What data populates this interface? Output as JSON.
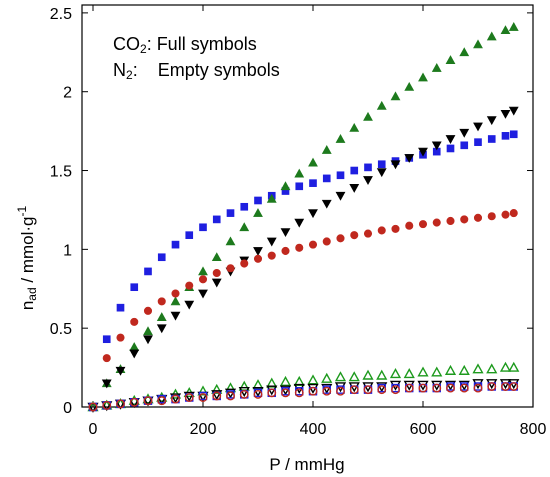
{
  "chart_data": {
    "type": "scatter",
    "xlabel": "P / mmHg",
    "ylabel": {
      "main": "n",
      "sub": "ad",
      "rest": " / mmol·g",
      "sup": "-1"
    },
    "xlim": [
      -20,
      800
    ],
    "ylim": [
      0,
      2.55
    ],
    "x_ticks": [
      0,
      200,
      400,
      600,
      800
    ],
    "y_ticks": [
      0,
      0.5,
      1,
      1.5,
      2,
      2.5
    ],
    "x_tick_labels": [
      "0",
      "200",
      "400",
      "600",
      "800"
    ],
    "y_tick_labels": [
      "0",
      "0.5",
      "1",
      "1.5",
      "2",
      "2.5"
    ],
    "grid": false,
    "annotations": [
      {
        "main": "CO",
        "sub": "2",
        "text": ": Full symbols"
      },
      {
        "main": "N",
        "sub": "2",
        "text": ":    Empty symbols"
      }
    ],
    "series": [
      {
        "gas": "CO2",
        "filled": true,
        "marker": "square",
        "color": "#1f1fe0",
        "x": [
          25,
          50,
          75,
          100,
          125,
          150,
          175,
          200,
          225,
          250,
          275,
          300,
          325,
          350,
          375,
          400,
          425,
          450,
          475,
          500,
          525,
          550,
          575,
          600,
          625,
          650,
          675,
          700,
          725,
          750,
          765
        ],
        "y": [
          0.43,
          0.63,
          0.76,
          0.86,
          0.95,
          1.03,
          1.09,
          1.14,
          1.19,
          1.23,
          1.27,
          1.31,
          1.34,
          1.37,
          1.4,
          1.42,
          1.45,
          1.47,
          1.5,
          1.52,
          1.54,
          1.56,
          1.58,
          1.6,
          1.62,
          1.64,
          1.66,
          1.68,
          1.7,
          1.72,
          1.73
        ]
      },
      {
        "gas": "CO2",
        "filled": true,
        "marker": "triangle-up",
        "color": "#1d7a1d",
        "x": [
          25,
          50,
          75,
          100,
          125,
          150,
          175,
          200,
          225,
          250,
          275,
          300,
          325,
          350,
          375,
          400,
          425,
          450,
          475,
          500,
          525,
          550,
          575,
          600,
          625,
          650,
          675,
          700,
          725,
          750,
          765
        ],
        "y": [
          0.15,
          0.24,
          0.38,
          0.48,
          0.57,
          0.67,
          0.76,
          0.86,
          0.95,
          1.05,
          1.14,
          1.23,
          1.32,
          1.4,
          1.48,
          1.55,
          1.63,
          1.7,
          1.77,
          1.84,
          1.91,
          1.97,
          2.03,
          2.09,
          2.15,
          2.2,
          2.25,
          2.3,
          2.35,
          2.39,
          2.41
        ]
      },
      {
        "gas": "CO2",
        "filled": true,
        "marker": "triangle-down",
        "color": "#000000",
        "x": [
          25,
          50,
          75,
          100,
          125,
          150,
          175,
          200,
          225,
          250,
          275,
          300,
          325,
          350,
          375,
          400,
          425,
          450,
          475,
          500,
          525,
          550,
          575,
          600,
          625,
          650,
          675,
          700,
          725,
          750,
          765
        ],
        "y": [
          0.15,
          0.23,
          0.34,
          0.43,
          0.5,
          0.58,
          0.65,
          0.72,
          0.79,
          0.86,
          0.93,
          0.99,
          1.05,
          1.11,
          1.17,
          1.23,
          1.29,
          1.34,
          1.39,
          1.44,
          1.49,
          1.54,
          1.58,
          1.62,
          1.66,
          1.7,
          1.74,
          1.78,
          1.82,
          1.86,
          1.88
        ]
      },
      {
        "gas": "CO2",
        "filled": true,
        "marker": "circle",
        "color": "#c0281e",
        "x": [
          25,
          50,
          75,
          100,
          125,
          150,
          175,
          200,
          225,
          250,
          275,
          300,
          325,
          350,
          375,
          400,
          425,
          450,
          475,
          500,
          525,
          550,
          575,
          600,
          625,
          650,
          675,
          700,
          725,
          750,
          765
        ],
        "y": [
          0.31,
          0.44,
          0.54,
          0.61,
          0.67,
          0.72,
          0.77,
          0.81,
          0.85,
          0.88,
          0.91,
          0.94,
          0.96,
          0.99,
          1.01,
          1.03,
          1.05,
          1.07,
          1.09,
          1.1,
          1.12,
          1.13,
          1.15,
          1.16,
          1.17,
          1.18,
          1.19,
          1.2,
          1.21,
          1.22,
          1.23
        ]
      },
      {
        "gas": "N2",
        "filled": false,
        "marker": "triangle-up",
        "color": "#1d9a1d",
        "x": [
          0,
          25,
          50,
          75,
          100,
          125,
          150,
          175,
          200,
          225,
          250,
          275,
          300,
          325,
          350,
          375,
          400,
          425,
          450,
          475,
          500,
          525,
          550,
          575,
          600,
          625,
          650,
          675,
          700,
          725,
          750,
          765
        ],
        "y": [
          0.0,
          0.01,
          0.02,
          0.04,
          0.05,
          0.06,
          0.08,
          0.09,
          0.1,
          0.11,
          0.12,
          0.13,
          0.14,
          0.15,
          0.16,
          0.16,
          0.17,
          0.18,
          0.19,
          0.19,
          0.2,
          0.2,
          0.21,
          0.21,
          0.22,
          0.22,
          0.23,
          0.23,
          0.24,
          0.24,
          0.25,
          0.25
        ]
      },
      {
        "gas": "N2",
        "filled": false,
        "marker": "triangle-down",
        "color": "#000000",
        "x": [
          0,
          25,
          50,
          75,
          100,
          125,
          150,
          175,
          200,
          225,
          250,
          275,
          300,
          325,
          350,
          375,
          400,
          425,
          450,
          475,
          500,
          525,
          550,
          575,
          600,
          625,
          650,
          675,
          700,
          725,
          750,
          765
        ],
        "y": [
          0.0,
          0.01,
          0.02,
          0.03,
          0.04,
          0.05,
          0.06,
          0.07,
          0.07,
          0.08,
          0.09,
          0.1,
          0.1,
          0.11,
          0.11,
          0.12,
          0.12,
          0.12,
          0.13,
          0.13,
          0.13,
          0.13,
          0.14,
          0.14,
          0.14,
          0.14,
          0.14,
          0.14,
          0.15,
          0.15,
          0.15,
          0.15
        ]
      },
      {
        "gas": "N2",
        "filled": false,
        "marker": "square",
        "color": "#1f1fe0",
        "x": [
          0,
          25,
          50,
          75,
          100,
          125,
          150,
          175,
          200,
          225,
          250,
          275,
          300,
          325,
          350,
          375,
          400,
          425,
          450,
          475,
          500,
          525,
          550,
          575,
          600,
          625,
          650,
          675,
          700,
          725,
          750,
          765
        ],
        "y": [
          0.0,
          0.01,
          0.02,
          0.03,
          0.04,
          0.05,
          0.05,
          0.06,
          0.07,
          0.07,
          0.08,
          0.08,
          0.09,
          0.09,
          0.1,
          0.1,
          0.1,
          0.11,
          0.11,
          0.11,
          0.11,
          0.12,
          0.12,
          0.12,
          0.12,
          0.12,
          0.13,
          0.13,
          0.13,
          0.13,
          0.13,
          0.13
        ]
      },
      {
        "gas": "N2",
        "filled": false,
        "marker": "circle",
        "color": "#c0281e",
        "x": [
          0,
          25,
          50,
          75,
          100,
          125,
          150,
          175,
          200,
          225,
          250,
          275,
          300,
          325,
          350,
          375,
          400,
          425,
          450,
          475,
          500,
          525,
          550,
          575,
          600,
          625,
          650,
          675,
          700,
          725,
          750,
          765
        ],
        "y": [
          0.0,
          0.01,
          0.02,
          0.03,
          0.04,
          0.04,
          0.05,
          0.06,
          0.06,
          0.07,
          0.07,
          0.08,
          0.08,
          0.09,
          0.09,
          0.09,
          0.1,
          0.1,
          0.1,
          0.11,
          0.11,
          0.11,
          0.11,
          0.12,
          0.12,
          0.12,
          0.12,
          0.12,
          0.12,
          0.13,
          0.13,
          0.13
        ]
      }
    ]
  }
}
